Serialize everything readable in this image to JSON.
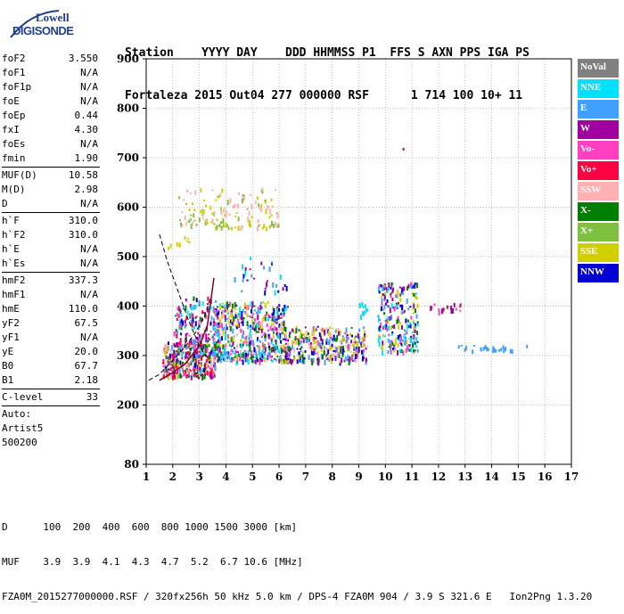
{
  "logo": {
    "line1": "Lowell",
    "line2": "DIGISONDE"
  },
  "header": {
    "labels": "Station    YYYY DAY    DDD HHMMSS P1  FFS S AXN PPS IGA PS",
    "values": "Fortaleza 2015 Out04 277 000000 RSF      1 714 100 10+ 11"
  },
  "params": {
    "group1": [
      {
        "k": "foF2",
        "v": "3.550"
      },
      {
        "k": "foF1",
        "v": "N/A"
      },
      {
        "k": "foF1p",
        "v": "N/A"
      },
      {
        "k": "foE",
        "v": "N/A"
      },
      {
        "k": "foEp",
        "v": "0.44"
      },
      {
        "k": "fxI",
        "v": "4.30"
      },
      {
        "k": "foEs",
        "v": "N/A"
      },
      {
        "k": "fmin",
        "v": "1.90"
      }
    ],
    "group2": [
      {
        "k": "MUF(D)",
        "v": "10.58"
      },
      {
        "k": "M(D)",
        "v": "2.98"
      },
      {
        "k": "D",
        "v": "N/A"
      }
    ],
    "group3": [
      {
        "k": "h`F",
        "v": "310.0"
      },
      {
        "k": "h`F2",
        "v": "310.0"
      },
      {
        "k": "h`E",
        "v": "N/A"
      },
      {
        "k": "h`Es",
        "v": "N/A"
      }
    ],
    "group4": [
      {
        "k": "hmF2",
        "v": "337.3"
      },
      {
        "k": "hmF1",
        "v": "N/A"
      },
      {
        "k": "hmE",
        "v": "110.0"
      },
      {
        "k": "yF2",
        "v": "67.5"
      },
      {
        "k": "yF1",
        "v": "N/A"
      },
      {
        "k": "yE",
        "v": "20.0"
      },
      {
        "k": "B0",
        "v": "67.7"
      },
      {
        "k": "B1",
        "v": "2.18"
      }
    ],
    "group5": [
      {
        "k": "C-level",
        "v": "33"
      }
    ],
    "auto": [
      "Auto:",
      "Artist5",
      "500200"
    ]
  },
  "chart_data": {
    "type": "scatter",
    "title": "",
    "xlabel": "",
    "ylabel": "",
    "xlim": [
      1,
      17
    ],
    "ylim": [
      80,
      900
    ],
    "xticks": [
      1,
      2,
      3,
      4,
      5,
      6,
      7,
      8,
      9,
      10,
      11,
      12,
      13,
      14,
      15,
      16,
      17
    ],
    "yticks": [
      80,
      200,
      300,
      400,
      500,
      600,
      700,
      800,
      900
    ],
    "legend": [
      {
        "name": "NoVal",
        "color": "#808080"
      },
      {
        "name": "NNE",
        "color": "#00e0ff"
      },
      {
        "name": "E",
        "color": "#40a0ff"
      },
      {
        "name": "W",
        "color": "#a000a0"
      },
      {
        "name": "Vo-",
        "color": "#ff40c0"
      },
      {
        "name": "Vo+",
        "color": "#ff0040"
      },
      {
        "name": "SSW",
        "color": "#ffb0b0"
      },
      {
        "name": "X-",
        "color": "#008000"
      },
      {
        "name": "X+",
        "color": "#80c040"
      },
      {
        "name": "SSE",
        "color": "#d0d000"
      },
      {
        "name": "NNW",
        "color": "#0000d0"
      }
    ],
    "echo_clusters": [
      {
        "f": [
          1.6,
          3.6
        ],
        "h": [
          260,
          330
        ],
        "colors": [
          "#ffb0b0",
          "#d0d000",
          "#40a0ff",
          "#ff40c0",
          "#a000a0",
          "#008000",
          "#0000d0",
          "#ff0040"
        ],
        "n": 360
      },
      {
        "f": [
          2.0,
          3.7
        ],
        "h": [
          300,
          420
        ],
        "colors": [
          "#40a0ff",
          "#00e0ff",
          "#ff40c0",
          "#a000a0",
          "#0000d0",
          "#ff0040",
          "#008000"
        ],
        "n": 180
      },
      {
        "f": [
          3.5,
          6.3
        ],
        "h": [
          290,
          410
        ],
        "colors": [
          "#d0d000",
          "#40a0ff",
          "#00e0ff",
          "#ffb0b0",
          "#008000",
          "#0000d0",
          "#a000a0",
          "#ff40c0"
        ],
        "n": 520
      },
      {
        "f": [
          6.2,
          9.3
        ],
        "h": [
          290,
          360
        ],
        "colors": [
          "#d0d000",
          "#ffb0b0",
          "#40a0ff",
          "#008000",
          "#0000d0",
          "#ff40c0",
          "#a000a0"
        ],
        "n": 340
      },
      {
        "f": [
          9.7,
          11.2
        ],
        "h": [
          310,
          450
        ],
        "colors": [
          "#40a0ff",
          "#00e0ff",
          "#d0d000",
          "#0000d0",
          "#a000a0",
          "#ff40c0",
          "#008000"
        ],
        "n": 240
      },
      {
        "f": [
          2.2,
          6.0
        ],
        "h": [
          560,
          640
        ],
        "colors": [
          "#d0d000",
          "#80c040",
          "#ffb0b0"
        ],
        "n": 140
      },
      {
        "f": [
          1.8,
          2.6
        ],
        "h": [
          520,
          560
        ],
        "colors": [
          "#d0d000"
        ],
        "n": 10
      },
      {
        "f": [
          4.3,
          6.3
        ],
        "h": [
          430,
          500
        ],
        "colors": [
          "#40a0ff",
          "#0000d0",
          "#a000a0",
          "#00e0ff"
        ],
        "n": 30
      },
      {
        "f": [
          11.5,
          12.9
        ],
        "h": [
          390,
          410
        ],
        "colors": [
          "#ff0040",
          "#a000a0",
          "#ff40c0"
        ],
        "n": 18
      },
      {
        "f": [
          12.7,
          15.3
        ],
        "h": [
          312,
          322
        ],
        "colors": [
          "#40a0ff"
        ],
        "n": 26
      },
      {
        "f": [
          9.0,
          9.3
        ],
        "h": [
          380,
          410
        ],
        "colors": [
          "#00e0ff"
        ],
        "n": 14
      }
    ],
    "trace_profile": [
      [
        1.5,
        250
      ],
      [
        2.0,
        265
      ],
      [
        2.5,
        285
      ],
      [
        3.0,
        320
      ],
      [
        3.3,
        360
      ],
      [
        3.55,
        457
      ]
    ],
    "trace_extrapolated": [
      [
        1.5,
        545
      ],
      [
        1.8,
        490
      ],
      [
        2.2,
        430
      ],
      [
        2.6,
        370
      ],
      [
        3.0,
        320
      ],
      [
        3.3,
        295
      ]
    ],
    "trace_lower": [
      [
        1.1,
        250
      ],
      [
        1.5,
        262
      ],
      [
        2.0,
        290
      ],
      [
        2.5,
        320
      ],
      [
        2.9,
        350
      ],
      [
        3.2,
        380
      ],
      [
        3.45,
        420
      ]
    ]
  },
  "footer": {
    "line1": "D      100  200  400  600  800 1000 1500 3000 [km]",
    "line2": "MUF    3.9  3.9  4.1  4.3  4.7  5.2  6.7 10.6 [MHz]",
    "line3": "FZA0M_2015277000000.RSF / 320fx256h 50 kHz 5.0 km / DPS-4 FZA0M 904 / 3.9 S 321.6 E   Ion2Png 1.3.20"
  }
}
